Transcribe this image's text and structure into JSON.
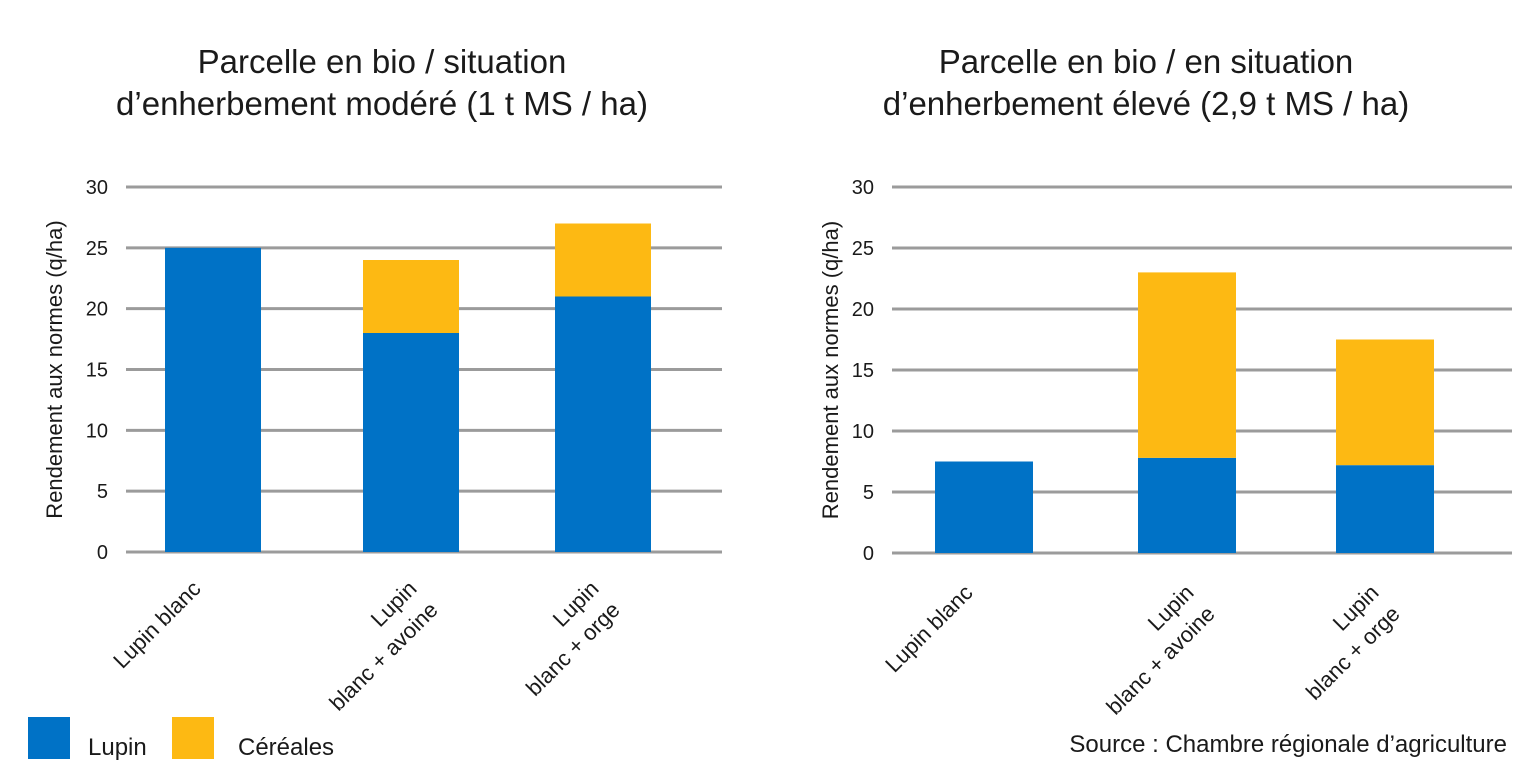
{
  "colors": {
    "lupin": "#0072C6",
    "cereales": "#FDB913",
    "grid": "#9b9b9b"
  },
  "legend": {
    "lupin_label": "Lupin",
    "cereales_label": "Céréales"
  },
  "source": "Source : Chambre régionale d’agriculture",
  "chart_data": [
    {
      "type": "bar",
      "stacked": true,
      "title_lines": [
        "Parcelle en bio / situation",
        "d’enherbement modéré (1 t MS / ha)"
      ],
      "ylabel": "Rendement aux normes (q/ha)",
      "ylim": [
        0,
        30
      ],
      "yticks": [
        0,
        5,
        10,
        15,
        20,
        25,
        30
      ],
      "grid": true,
      "categories": [
        [
          "Lupin blanc"
        ],
        [
          "Lupin",
          "blanc + avoine"
        ],
        [
          "Lupin",
          "blanc + orge"
        ]
      ],
      "series": [
        {
          "name": "Lupin",
          "values": [
            25,
            18,
            21
          ]
        },
        {
          "name": "Céréales",
          "values": [
            0,
            6,
            6
          ]
        }
      ]
    },
    {
      "type": "bar",
      "stacked": true,
      "title_lines": [
        "Parcelle en bio / en situation",
        "d’enherbement élevé (2,9 t MS / ha)"
      ],
      "ylabel": "Rendement aux normes (q/ha)",
      "ylim": [
        0,
        30
      ],
      "yticks": [
        0,
        5,
        10,
        15,
        20,
        25,
        30
      ],
      "grid": true,
      "categories": [
        [
          "Lupin blanc"
        ],
        [
          "Lupin",
          "blanc + avoine"
        ],
        [
          "Lupin",
          "blanc + orge"
        ]
      ],
      "series": [
        {
          "name": "Lupin",
          "values": [
            7.5,
            7.8,
            7.2
          ]
        },
        {
          "name": "Céréales",
          "values": [
            0,
            15.2,
            10.3
          ]
        }
      ]
    }
  ]
}
